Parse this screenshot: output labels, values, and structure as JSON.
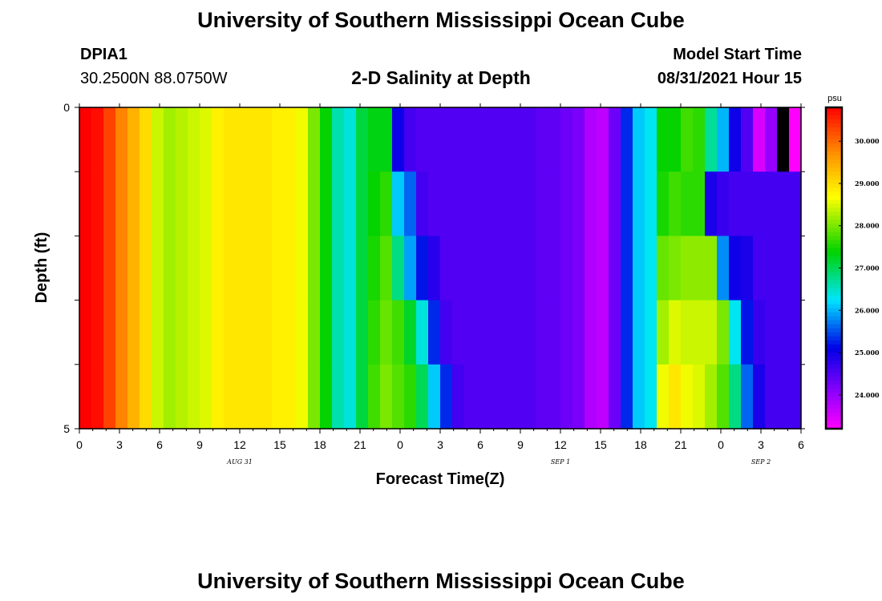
{
  "header": {
    "title_top": "University of Southern Mississippi Ocean Cube",
    "title_bottom": "University of Southern Mississippi Ocean Cube",
    "station_id": "DPIA1",
    "station_coords": "30.2500N  88.0750W",
    "plot_title": "2-D Salinity at Depth",
    "model_start_label": "Model Start Time",
    "model_start_value": "08/31/2021 Hour 15"
  },
  "chart_data": {
    "type": "heatmap",
    "title": "2-D Salinity at Depth",
    "xlabel": "Forecast Time(Z)",
    "ylabel": "Depth (ft)",
    "x_tick_labels": [
      "0",
      "3",
      "6",
      "9",
      "12",
      "15",
      "18",
      "21",
      "0",
      "3",
      "6",
      "9",
      "12",
      "15",
      "18",
      "21",
      "0",
      "3",
      "6"
    ],
    "date_labels": [
      {
        "label": "AUG 31",
        "hour_index": 12
      },
      {
        "label": "SEP 1",
        "hour_index": 36
      },
      {
        "label": "SEP 2",
        "hour_index": 51
      }
    ],
    "x_range_hours": [
      0,
      54
    ],
    "y_range_ft": [
      0,
      5
    ],
    "y_tick_labels": [
      "0",
      "5"
    ],
    "depth_levels_ft": [
      0,
      1,
      2,
      3,
      4
    ],
    "colorbar": {
      "unit": "psu",
      "labels": [
        "30.000",
        "29.000",
        "28.000",
        "27.000",
        "26.000",
        "25.000",
        "24.000"
      ],
      "range": [
        23.2,
        30.8
      ]
    },
    "salinity_by_depth": [
      [
        30.8,
        30.7,
        30.3,
        29.8,
        29.4,
        29.0,
        28.4,
        28.2,
        28.3,
        28.4,
        28.5,
        28.8,
        28.9,
        28.9,
        28.9,
        28.9,
        28.8,
        28.8,
        28.6,
        28.0,
        27.4,
        26.6,
        26.4,
        27.1,
        27.3,
        27.3,
        25.0,
        24.6,
        24.5,
        24.5,
        24.5,
        24.5,
        24.5,
        24.5,
        24.5,
        24.5,
        24.5,
        24.5,
        24.4,
        24.4,
        24.3,
        24.2,
        23.8,
        23.7,
        24.3,
        25.3,
        26.1,
        26.3,
        27.4,
        27.4,
        27.7,
        27.6,
        26.7,
        26.0,
        25.0,
        24.5,
        23.5,
        24.0,
        23.2,
        23.2
      ],
      [
        30.8,
        30.7,
        30.3,
        29.8,
        29.4,
        29.0,
        28.4,
        28.2,
        28.3,
        28.4,
        28.5,
        28.8,
        28.9,
        28.9,
        28.9,
        28.9,
        28.8,
        28.8,
        28.6,
        28.0,
        27.4,
        26.6,
        26.4,
        27.1,
        27.4,
        27.6,
        26.1,
        25.6,
        24.6,
        24.5,
        24.5,
        24.5,
        24.5,
        24.5,
        24.5,
        24.5,
        24.5,
        24.5,
        24.4,
        24.4,
        24.3,
        24.2,
        23.8,
        23.7,
        24.3,
        25.3,
        26.1,
        26.3,
        27.5,
        27.7,
        27.6,
        27.6,
        24.9,
        24.7,
        24.6,
        24.6,
        24.6,
        24.6,
        24.6,
        24.6
      ],
      [
        30.8,
        30.7,
        30.3,
        29.8,
        29.4,
        29.0,
        28.4,
        28.2,
        28.3,
        28.4,
        28.5,
        28.8,
        28.9,
        28.9,
        28.9,
        28.9,
        28.8,
        28.8,
        28.6,
        28.0,
        27.4,
        26.6,
        26.4,
        27.1,
        27.5,
        27.8,
        26.8,
        25.9,
        25.2,
        24.8,
        24.5,
        24.5,
        24.5,
        24.5,
        24.5,
        24.5,
        24.5,
        24.5,
        24.4,
        24.4,
        24.3,
        24.2,
        23.8,
        23.7,
        24.3,
        25.3,
        26.1,
        26.3,
        27.9,
        28.0,
        28.1,
        28.1,
        28.1,
        25.8,
        25.0,
        24.9,
        24.6,
        24.6,
        24.6,
        24.6
      ],
      [
        30.8,
        30.7,
        30.3,
        29.8,
        29.4,
        29.0,
        28.4,
        28.2,
        28.3,
        28.4,
        28.5,
        28.8,
        28.9,
        28.9,
        28.9,
        28.9,
        28.8,
        28.8,
        28.6,
        28.0,
        27.4,
        26.6,
        26.4,
        27.1,
        27.6,
        27.9,
        27.7,
        27.2,
        26.4,
        25.3,
        24.6,
        24.5,
        24.5,
        24.5,
        24.5,
        24.5,
        24.5,
        24.5,
        24.4,
        24.4,
        24.3,
        24.2,
        23.8,
        23.7,
        24.3,
        25.3,
        26.1,
        26.3,
        28.2,
        28.5,
        28.4,
        28.4,
        28.4,
        28.0,
        26.3,
        25.2,
        24.7,
        24.6,
        24.6,
        24.6
      ],
      [
        30.8,
        30.7,
        30.3,
        29.8,
        29.4,
        29.0,
        28.4,
        28.2,
        28.3,
        28.4,
        28.5,
        28.8,
        28.9,
        28.9,
        28.9,
        28.9,
        28.8,
        28.8,
        28.6,
        28.0,
        27.4,
        26.6,
        26.4,
        27.1,
        27.7,
        28.0,
        27.8,
        27.6,
        27.0,
        26.1,
        25.3,
        24.6,
        24.5,
        24.5,
        24.5,
        24.5,
        24.5,
        24.5,
        24.4,
        24.4,
        24.3,
        24.2,
        23.8,
        23.7,
        24.3,
        25.3,
        26.1,
        26.3,
        28.6,
        28.9,
        28.6,
        28.5,
        28.2,
        27.8,
        26.8,
        25.6,
        24.9,
        24.6,
        24.6,
        24.6
      ]
    ],
    "missing_cells": [
      {
        "depth_index": 0,
        "column_index": 58
      }
    ]
  },
  "colors": {
    "black": "#000000",
    "background": "#ffffff"
  }
}
